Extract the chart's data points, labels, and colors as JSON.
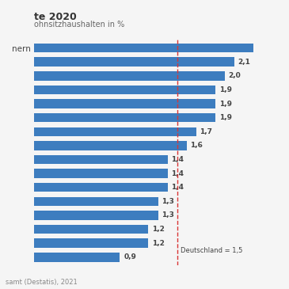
{
  "title": "te 2020",
  "subtitle": "ohnsitzhaushalten in %",
  "values": [
    2.3,
    2.1,
    2.0,
    1.9,
    1.9,
    1.9,
    1.7,
    1.6,
    1.4,
    1.4,
    1.4,
    1.3,
    1.3,
    1.2,
    1.2,
    0.9
  ],
  "y_tick_labels": [
    "nern",
    "",
    "",
    "",
    "",
    "",
    "",
    "",
    "",
    "",
    "",
    "",
    "",
    "",
    "",
    ""
  ],
  "bar_labels": [
    "",
    "2,1",
    "2,0",
    "1,9",
    "1,9",
    "1,9",
    "1,7",
    "1,6",
    "1,4",
    "1,4",
    "1,4",
    "1,3",
    "1,3",
    "1,2",
    "1,2",
    "0,9"
  ],
  "bar_color": "#3d7dbf",
  "reference_line": 1.5,
  "reference_label": "Deutschland = 1,5",
  "reference_color": "#d93535",
  "source_text": "samt (Destatis), 2021",
  "background_color": "#f5f5f5",
  "xlim": [
    0,
    2.55
  ]
}
